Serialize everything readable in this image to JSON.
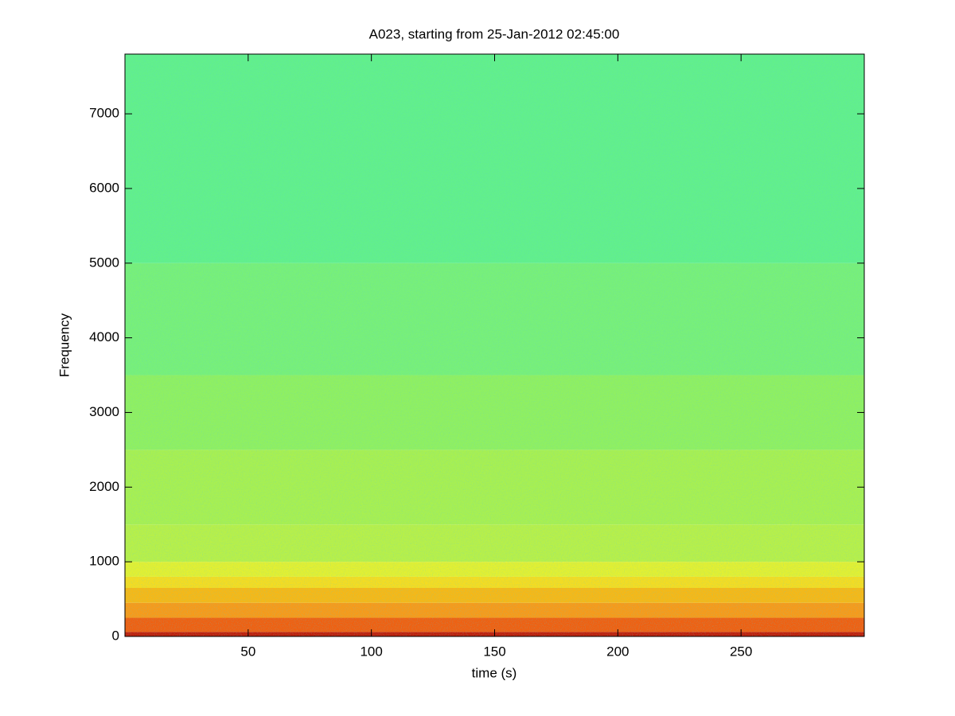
{
  "chart_data": {
    "type": "spectrogram",
    "title": "A023, starting from 25-Jan-2012 02:45:00",
    "xlabel": "time (s)",
    "ylabel": "Frequency",
    "xlim": [
      0,
      300
    ],
    "ylim": [
      0,
      7800
    ],
    "xticks": [
      50,
      100,
      150,
      200,
      250
    ],
    "yticks": [
      0,
      1000,
      2000,
      3000,
      4000,
      5000,
      6000,
      7000
    ],
    "bins": [
      0,
      60,
      250,
      450,
      650,
      800,
      1000,
      1500,
      2500,
      3500,
      5000,
      7800
    ],
    "colors": [
      "#c0200a",
      "#f06010",
      "#f89a18",
      "#f7b815",
      "#f5dc20",
      "#e3f030",
      "#b8f048",
      "#a8f050",
      "#90f060",
      "#78f078",
      "#62f08a"
    ]
  }
}
